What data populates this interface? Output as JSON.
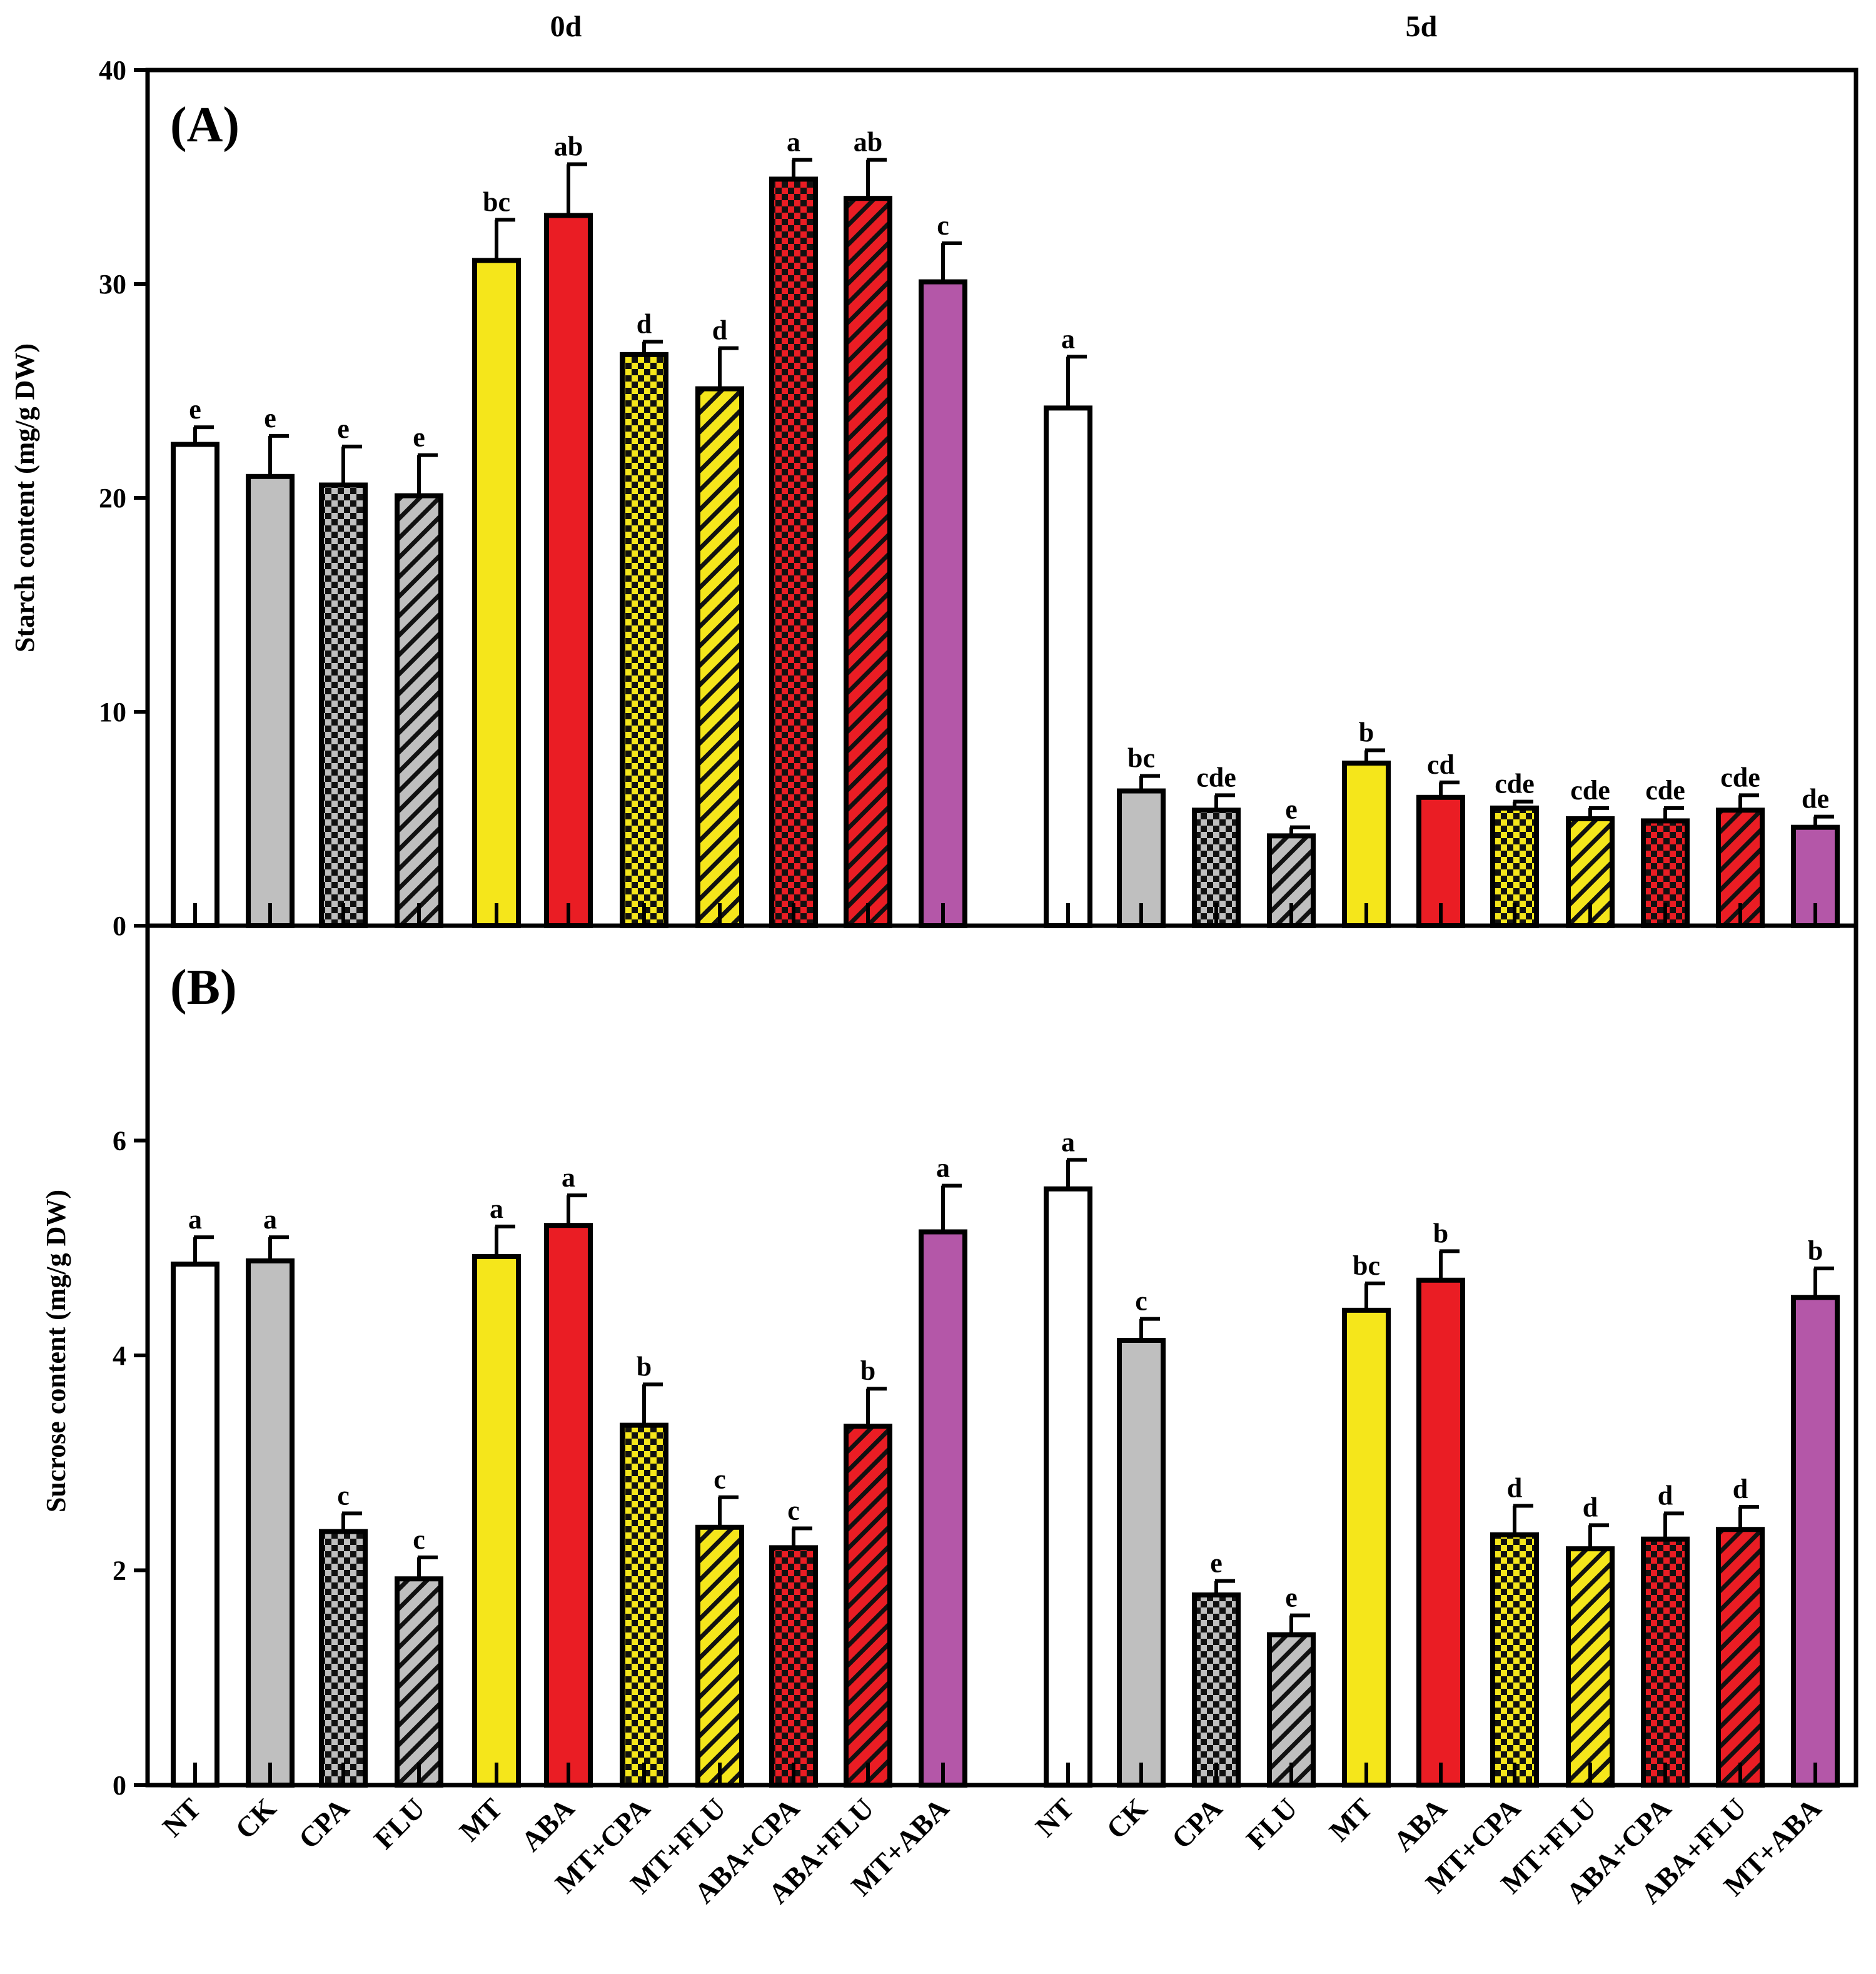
{
  "chart_data": [
    {
      "panel": "(A)",
      "type": "bar",
      "ylabel": "Starch content (mg/g DW)",
      "ylim": [
        0,
        40
      ],
      "yticks": [
        0,
        10,
        20,
        30,
        40
      ],
      "groups": [
        {
          "day": "0d",
          "categories": [
            "NT",
            "CK",
            "CPA",
            "FLU",
            "MT",
            "ABA",
            "MT+CPA",
            "MT+FLU",
            "ABA+CPA",
            "ABA+FLU",
            "MT+ABA"
          ],
          "values": [
            22.5,
            21.0,
            20.6,
            20.1,
            31.1,
            33.2,
            26.7,
            25.1,
            34.9,
            34.0,
            30.1
          ],
          "errors": [
            0.8,
            1.9,
            1.8,
            1.9,
            1.9,
            2.4,
            0.6,
            1.9,
            0.9,
            1.8,
            1.8
          ],
          "letters": [
            "e",
            "e",
            "e",
            "e",
            "bc",
            "ab",
            "d",
            "d",
            "a",
            "ab",
            "c"
          ]
        },
        {
          "day": "5d",
          "categories": [
            "NT",
            "CK",
            "CPA",
            "FLU",
            "MT",
            "ABA",
            "MT+CPA",
            "MT+FLU",
            "ABA+CPA",
            "ABA+FLU",
            "MT+ABA"
          ],
          "values": [
            24.2,
            6.3,
            5.4,
            4.2,
            7.6,
            6.0,
            5.5,
            5.0,
            4.9,
            5.4,
            4.6
          ],
          "errors": [
            2.4,
            0.7,
            0.7,
            0.4,
            0.6,
            0.7,
            0.3,
            0.5,
            0.6,
            0.7,
            0.5
          ],
          "letters": [
            "a",
            "bc",
            "cde",
            "e",
            "b",
            "cd",
            "cde",
            "cde",
            "cde",
            "cde",
            "de"
          ]
        }
      ]
    },
    {
      "panel": "(B)",
      "type": "bar",
      "ylabel": "Sucrose content  (mg/g DW)",
      "ylim": [
        0,
        8
      ],
      "yticks": [
        0,
        2,
        4,
        6
      ],
      "groups": [
        {
          "day": "0d",
          "categories": [
            "NT",
            "CK",
            "CPA",
            "FLU",
            "MT",
            "ABA",
            "MT+CPA",
            "MT+FLU",
            "ABA+CPA",
            "ABA+FLU",
            "MT+ABA"
          ],
          "values": [
            4.85,
            4.88,
            2.36,
            1.92,
            4.92,
            5.21,
            3.35,
            2.4,
            2.21,
            3.34,
            5.15
          ],
          "errors": [
            0.25,
            0.22,
            0.17,
            0.2,
            0.28,
            0.28,
            0.38,
            0.28,
            0.18,
            0.35,
            0.43
          ],
          "letters": [
            "a",
            "a",
            "c",
            "c",
            "a",
            "a",
            "b",
            "c",
            "c",
            "b",
            "a"
          ]
        },
        {
          "day": "5d",
          "categories": [
            "NT",
            "CK",
            "CPA",
            "FLU",
            "MT",
            "ABA",
            "MT+CPA",
            "MT+FLU",
            "ABA+CPA",
            "ABA+FLU",
            "MT+ABA"
          ],
          "values": [
            5.55,
            4.14,
            1.77,
            1.4,
            4.42,
            4.7,
            2.33,
            2.2,
            2.29,
            2.38,
            4.54
          ],
          "errors": [
            0.27,
            0.2,
            0.13,
            0.18,
            0.25,
            0.27,
            0.27,
            0.22,
            0.24,
            0.21,
            0.27
          ],
          "letters": [
            "a",
            "c",
            "e",
            "e",
            "bc",
            "b",
            "d",
            "d",
            "d",
            "d",
            "b"
          ]
        }
      ]
    }
  ],
  "legend_styles": [
    {
      "treatment": "NT",
      "fill": "#ffffff",
      "pattern": "solid"
    },
    {
      "treatment": "CK",
      "fill": "#bfbfbf",
      "pattern": "solid"
    },
    {
      "treatment": "CPA",
      "fill": "#bfbfbf",
      "pattern": "checker"
    },
    {
      "treatment": "FLU",
      "fill": "#bfbfbf",
      "pattern": "diagonal"
    },
    {
      "treatment": "MT",
      "fill": "#f5e61b",
      "pattern": "solid"
    },
    {
      "treatment": "ABA",
      "fill": "#ea1d24",
      "pattern": "solid"
    },
    {
      "treatment": "MT+CPA",
      "fill": "#f5e61b",
      "pattern": "checker"
    },
    {
      "treatment": "MT+FLU",
      "fill": "#f5e61b",
      "pattern": "diagonal"
    },
    {
      "treatment": "ABA+CPA",
      "fill": "#ea1d24",
      "pattern": "checker"
    },
    {
      "treatment": "ABA+FLU",
      "fill": "#ea1d24",
      "pattern": "diagonal"
    },
    {
      "treatment": "MT+ABA",
      "fill": "#b457a8",
      "pattern": "solid"
    }
  ]
}
